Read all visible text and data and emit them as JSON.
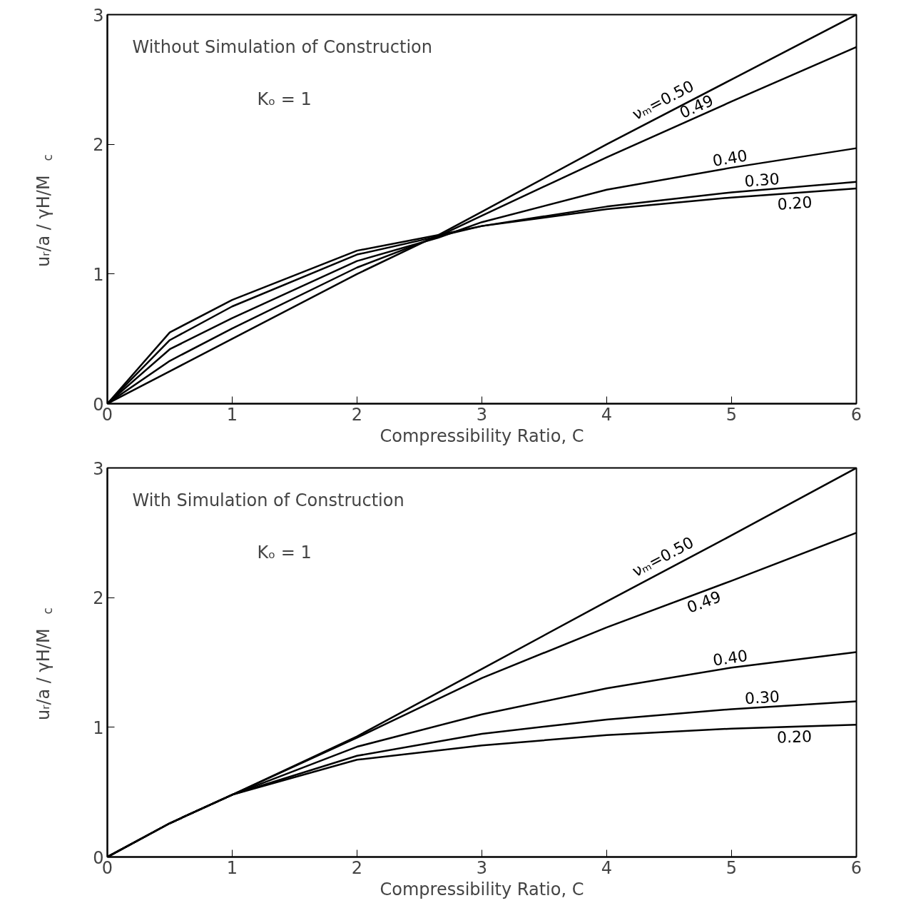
{
  "chart_data": [
    {
      "type": "line",
      "annotations": [
        "Without Simulation of Construction",
        "Kₒ = 1"
      ],
      "xlabel": "Compressibility Ratio, C",
      "ylabel": "uᵣ/a / γH/M$_{c}$",
      "xlim": [
        0,
        6
      ],
      "ylim": [
        0,
        3
      ],
      "xticks": [
        0,
        1,
        2,
        3,
        4,
        5,
        6
      ],
      "yticks": [
        0,
        1,
        2,
        3
      ],
      "grid": false,
      "legend": false,
      "marker": "none",
      "line_style": "solid",
      "x": [
        0,
        0.5,
        1,
        2,
        2.65,
        3,
        4,
        5,
        6
      ],
      "series": [
        {
          "name": "νₘ=0.50",
          "color": "#000000",
          "values": [
            0,
            0.25,
            0.5,
            1.0,
            1.3,
            1.48,
            2.0,
            2.5,
            3.0
          ]
        },
        {
          "name": "0.49",
          "color": "#000000",
          "values": [
            0,
            0.33,
            0.58,
            1.05,
            1.29,
            1.45,
            1.9,
            2.33,
            2.75
          ]
        },
        {
          "name": "0.40",
          "color": "#000000",
          "values": [
            0,
            0.42,
            0.66,
            1.1,
            1.28,
            1.4,
            1.65,
            1.82,
            1.97
          ]
        },
        {
          "name": "0.30",
          "color": "#000000",
          "values": [
            0,
            0.49,
            0.75,
            1.15,
            1.29,
            1.37,
            1.52,
            1.63,
            1.71
          ]
        },
        {
          "name": "0.20",
          "color": "#000000",
          "values": [
            0,
            0.55,
            0.8,
            1.18,
            1.3,
            1.37,
            1.5,
            1.59,
            1.66
          ]
        }
      ]
    },
    {
      "type": "line",
      "annotations": [
        "With Simulation of Construction",
        "Kₒ = 1"
      ],
      "xlabel": "Compressibility Ratio, C",
      "ylabel": "uᵣ/a / γH/M$_{c}$",
      "xlim": [
        0,
        6
      ],
      "ylim": [
        0,
        3
      ],
      "xticks": [
        0,
        1,
        2,
        3,
        4,
        5,
        6
      ],
      "yticks": [
        0,
        1,
        2,
        3
      ],
      "grid": false,
      "legend": false,
      "marker": "none",
      "line_style": "solid",
      "x": [
        0,
        0.5,
        1,
        2,
        3,
        4,
        5,
        6
      ],
      "series": [
        {
          "name": "νₘ=0.50",
          "color": "#000000",
          "values": [
            0,
            0.26,
            0.48,
            0.93,
            1.45,
            1.97,
            2.48,
            3.0
          ]
        },
        {
          "name": "0.49",
          "color": "#000000",
          "values": [
            0,
            0.26,
            0.48,
            0.92,
            1.38,
            1.77,
            2.13,
            2.5
          ]
        },
        {
          "name": "0.40",
          "color": "#000000",
          "values": [
            0,
            0.26,
            0.48,
            0.85,
            1.1,
            1.3,
            1.46,
            1.58
          ]
        },
        {
          "name": "0.30",
          "color": "#000000",
          "values": [
            0,
            0.26,
            0.48,
            0.78,
            0.95,
            1.06,
            1.14,
            1.2
          ]
        },
        {
          "name": "0.20",
          "color": "#000000",
          "values": [
            0,
            0.26,
            0.48,
            0.75,
            0.86,
            0.94,
            0.99,
            1.02
          ]
        }
      ]
    }
  ]
}
